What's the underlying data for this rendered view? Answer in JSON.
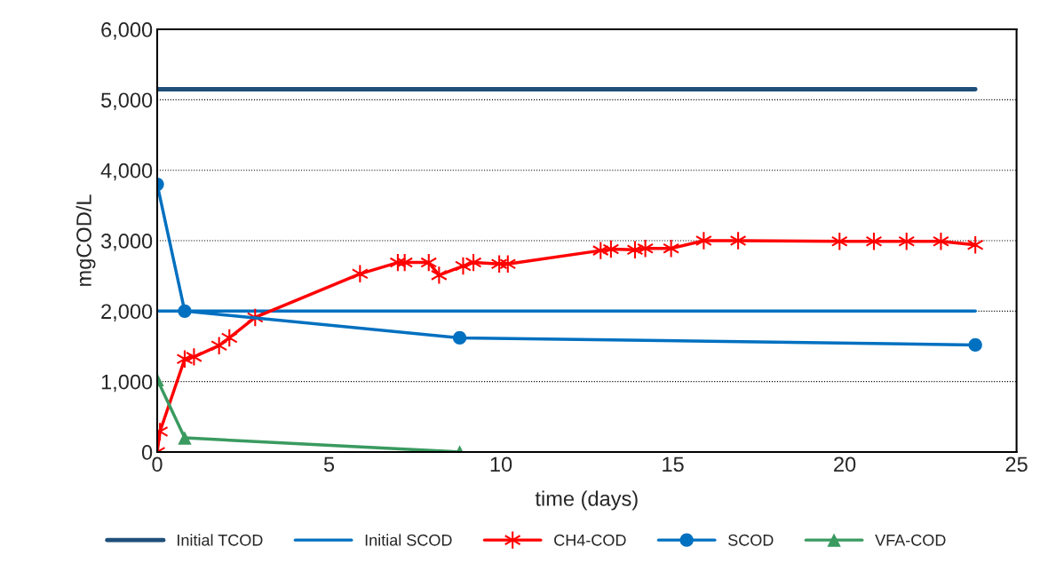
{
  "chart_data": {
    "type": "line",
    "xlabel": "time (days)",
    "ylabel": "mgCOD/L",
    "xlim": [
      0,
      25
    ],
    "xticks": [
      0,
      5,
      10,
      15,
      20,
      25
    ],
    "ylim": [
      0,
      6000
    ],
    "yticks": [
      {
        "value": 0,
        "label": "0"
      },
      {
        "value": 1000,
        "label": "1,000"
      },
      {
        "value": 2000,
        "label": "2,000"
      },
      {
        "value": 3000,
        "label": "3,000"
      },
      {
        "value": 4000,
        "label": "4,000"
      },
      {
        "value": 5000,
        "label": "5,000"
      },
      {
        "value": 6000,
        "label": "6,000"
      }
    ],
    "grid": "y",
    "legend": "bottom",
    "series": [
      {
        "name": "Initial TCOD",
        "color": "#1f4e79",
        "marker": "none",
        "x": [
          0,
          23.8
        ],
        "values": [
          5150,
          5150
        ]
      },
      {
        "name": "Initial SCOD",
        "color": "#0070c0",
        "marker": "none",
        "x": [
          0,
          23.8
        ],
        "values": [
          2000,
          2000
        ]
      },
      {
        "name": "CH4-COD",
        "color": "#ff0000",
        "marker": "cross",
        "x": [
          0,
          0.08,
          0.8,
          1.07,
          1.8,
          2.1,
          2.85,
          5.9,
          7.0,
          7.2,
          7.9,
          8.2,
          8.9,
          9.2,
          9.95,
          10.2,
          12.9,
          13.2,
          13.9,
          14.2,
          14.95,
          15.9,
          16.9,
          19.85,
          20.85,
          21.8,
          22.8,
          23.8
        ],
        "values": [
          0,
          290,
          1320,
          1350,
          1510,
          1620,
          1910,
          2530,
          2690,
          2690,
          2690,
          2510,
          2640,
          2690,
          2670,
          2670,
          2860,
          2880,
          2870,
          2890,
          2890,
          3000,
          3000,
          2990,
          2990,
          2990,
          2990,
          2940
        ]
      },
      {
        "name": "SCOD",
        "color": "#0070c0",
        "marker": "circle",
        "x": [
          0,
          0.8,
          8.8,
          23.8
        ],
        "values": [
          3800,
          2000,
          1620,
          1520
        ]
      },
      {
        "name": "VFA-COD",
        "color": "#3a9a60",
        "marker": "triangle",
        "x": [
          0,
          0.8,
          8.8
        ],
        "values": [
          1030,
          200,
          0
        ]
      }
    ]
  }
}
